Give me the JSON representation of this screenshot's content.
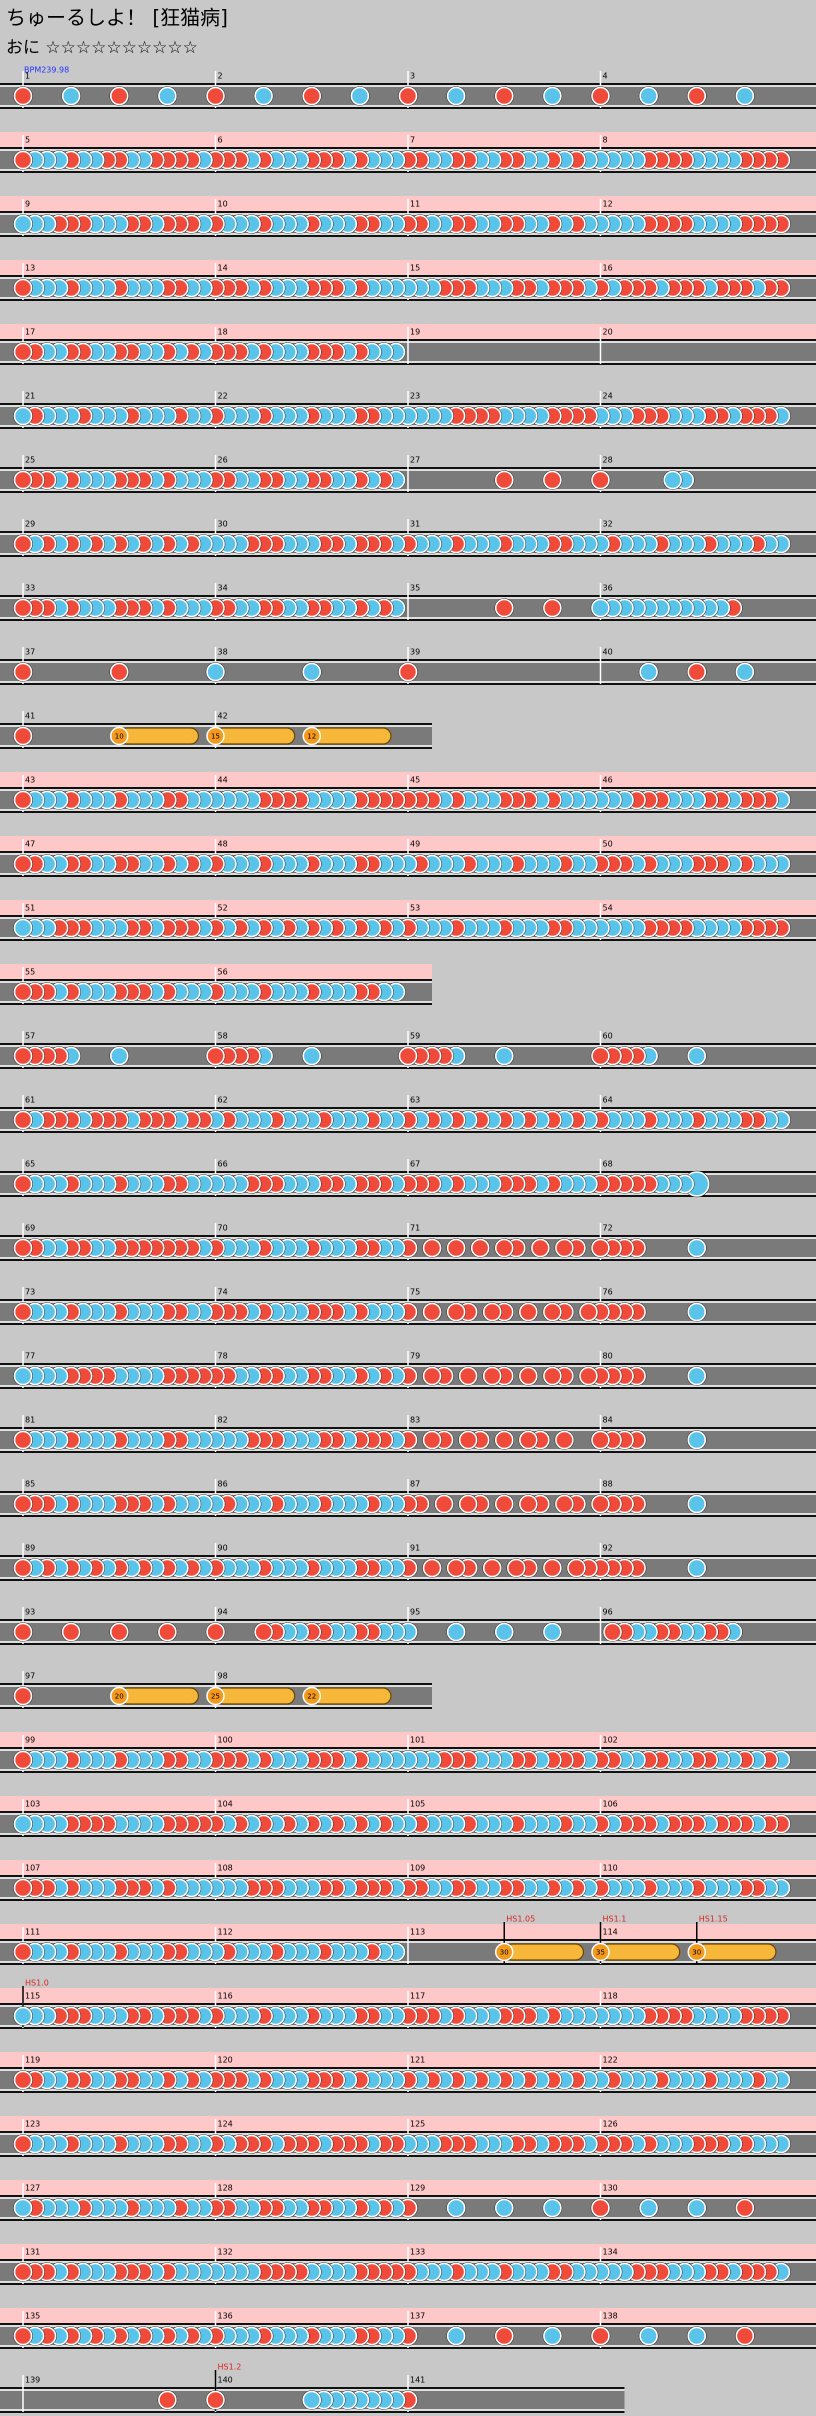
{
  "header": {
    "title": "ちゅーるしよ！ [狂猫病]",
    "difficulty": "おに ☆☆☆☆☆☆☆☆☆☆",
    "bpm": "BPM239.98"
  },
  "rows": [
    {
      "gogo": false,
      "measures": [
        {
          "number": "1",
          "notes": "1212"
        },
        {
          "number": "2",
          "notes": "1212"
        },
        {
          "number": "3",
          "notes": "1212"
        },
        {
          "number": "4",
          "notes": "1212"
        }
      ]
    },
    {
      "gogo": true,
      "measures": [
        {
          "number": "5",
          "notes": "1222122112211112"
        },
        {
          "number": "6",
          "notes": "1112122211121222"
        },
        {
          "number": "7",
          "notes": "1122112211221212"
        },
        {
          "number": "8",
          "notes": "2222111122221111"
        }
      ]
    },
    {
      "gogo": true,
      "measures": [
        {
          "number": "9",
          "notes": "2221112221121112"
        },
        {
          "number": "10",
          "notes": "1222122212221122"
        },
        {
          "number": "11",
          "notes": "1122112211221212"
        },
        {
          "number": "12",
          "notes": "2222111122221111"
        }
      ]
    },
    {
      "gogo": true,
      "measures": [
        {
          "number": "13",
          "notes": "1222122212221122"
        },
        {
          "number": "14",
          "notes": "1112122211121222"
        },
        {
          "number": "15",
          "notes": "2221112221121112"
        },
        {
          "number": "16",
          "notes": "1211121112111211"
        }
      ]
    },
    {
      "gogo": true,
      "measures": [
        {
          "number": "17",
          "notes": "1122112211221212"
        },
        {
          "number": "18",
          "notes": "1112122211121222"
        },
        {
          "number": "19",
          "notes": "0"
        },
        {
          "number": "20",
          "notes": "0"
        }
      ]
    },
    {
      "gogo": false,
      "measures": [
        {
          "number": "21",
          "notes": "2122212221222122"
        },
        {
          "number": "22",
          "notes": "1222122212221122"
        },
        {
          "number": "23",
          "notes": "2222111122221111"
        },
        {
          "number": "24",
          "notes": "2221112221121112"
        }
      ]
    },
    {
      "gogo": false,
      "measures": [
        {
          "number": "25",
          "notes": "1112122211121222"
        },
        {
          "number": "26",
          "notes": "1122112211221212"
        },
        {
          "number": "27",
          "notes": "0011"
        },
        {
          "number": "28",
          "notes": "1000002200000000"
        }
      ]
    },
    {
      "gogo": false,
      "measures": [
        {
          "number": "29",
          "notes": "1212121212121212"
        },
        {
          "number": "30",
          "notes": "2221112221121112"
        },
        {
          "number": "31",
          "notes": "1222122212221122"
        },
        {
          "number": "32",
          "notes": "2122212221222122"
        }
      ]
    },
    {
      "gogo": false,
      "measures": [
        {
          "number": "33",
          "notes": "1112122211121222"
        },
        {
          "number": "34",
          "notes": "1122112211221212"
        },
        {
          "number": "35",
          "notes": "0011"
        },
        {
          "number": "36",
          "notes": "2222222222210000"
        }
      ]
    },
    {
      "gogo": false,
      "measures": [
        {
          "number": "37",
          "notes": "1010"
        },
        {
          "number": "38",
          "notes": "2020"
        },
        {
          "number": "39",
          "notes": "1000"
        },
        {
          "number": "40",
          "notes": "0212"
        }
      ]
    },
    {
      "gogo": false,
      "measures": [
        {
          "number": "41",
          "notes": "10007008",
          "balloons": [
            "10"
          ]
        },
        {
          "number": "42",
          "notes": "70087008",
          "balloons": [
            "12",
            "15"
          ]
        }
      ]
    },
    {
      "gogo": true,
      "measures": [
        {
          "number": "43",
          "notes": "1222122212221122"
        },
        {
          "number": "44",
          "notes": "2222111122221111"
        },
        {
          "number": "45",
          "notes": "1112122211121222"
        },
        {
          "number": "46",
          "notes": "2221112221121112"
        }
      ]
    },
    {
      "gogo": true,
      "measures": [
        {
          "number": "47",
          "notes": "1122112211221212"
        },
        {
          "number": "48",
          "notes": "1222122212221122"
        },
        {
          "number": "49",
          "notes": "2122212221222122"
        },
        {
          "number": "50",
          "notes": "1112122211121222"
        }
      ]
    },
    {
      "gogo": true,
      "measures": [
        {
          "number": "51",
          "notes": "2221112221121112"
        },
        {
          "number": "52",
          "notes": "1212121212121212"
        },
        {
          "number": "53",
          "notes": "1222122212221122"
        },
        {
          "number": "54",
          "notes": "2222111122221111"
        }
      ]
    },
    {
      "gogo": true,
      "measures": [
        {
          "number": "55",
          "notes": "1112122211121222"
        },
        {
          "number": "56",
          "notes": "1222122212221122"
        }
      ]
    },
    {
      "gogo": false,
      "measures": [
        {
          "number": "57",
          "notes": "1111200020000000"
        },
        {
          "number": "58",
          "notes": "1111200020000000"
        },
        {
          "number": "59",
          "notes": "1111200020000000"
        },
        {
          "number": "60",
          "notes": "1111200020000000"
        }
      ]
    },
    {
      "gogo": false,
      "measures": [
        {
          "number": "61",
          "notes": "1211121112111211"
        },
        {
          "number": "62",
          "notes": "2122212221222122"
        },
        {
          "number": "63",
          "notes": "1212121212121212"
        },
        {
          "number": "64",
          "notes": "1222122212221122"
        }
      ]
    },
    {
      "gogo": false,
      "measures": [
        {
          "number": "65",
          "notes": "1222122212221122"
        },
        {
          "number": "66",
          "notes": "2221112221121112"
        },
        {
          "number": "67",
          "notes": "1112122211121222"
        },
        {
          "number": "68",
          "notes": "1111122240000000"
        }
      ]
    },
    {
      "gogo": false,
      "measures": [
        {
          "number": "69",
          "notes": "1122112211111112"
        },
        {
          "number": "70",
          "notes": "1222122212221122"
        },
        {
          "number": "71",
          "notes": "1010101011010110"
        },
        {
          "number": "72",
          "notes": "1111000020000000"
        }
      ]
    },
    {
      "gogo": false,
      "measures": [
        {
          "number": "73",
          "notes": "1222122212221122"
        },
        {
          "number": "74",
          "notes": "1112122211121222"
        },
        {
          "number": "75",
          "notes": "1010110110101101"
        },
        {
          "number": "76",
          "notes": "1111000020000000"
        }
      ]
    },
    {
      "gogo": false,
      "measures": [
        {
          "number": "77",
          "notes": "2222111122221111"
        },
        {
          "number": "78",
          "notes": "1122112211221212"
        },
        {
          "number": "79",
          "notes": "1011010110101101"
        },
        {
          "number": "80",
          "notes": "1111000020000000"
        }
      ]
    },
    {
      "gogo": false,
      "measures": [
        {
          "number": "81",
          "notes": "1222122212221122"
        },
        {
          "number": "82",
          "notes": "2221112221121112"
        },
        {
          "number": "83",
          "notes": "1011011010110100"
        },
        {
          "number": "84",
          "notes": "1111000020000000"
        }
      ]
    },
    {
      "gogo": false,
      "measures": [
        {
          "number": "85",
          "notes": "1112122211121222"
        },
        {
          "number": "86",
          "notes": "2122212221222122"
        },
        {
          "number": "87",
          "notes": "1101011010110110"
        },
        {
          "number": "88",
          "notes": "1111000020000000"
        }
      ]
    },
    {
      "gogo": false,
      "measures": [
        {
          "number": "89",
          "notes": "1212121212121212"
        },
        {
          "number": "90",
          "notes": "1222122212221122"
        },
        {
          "number": "91",
          "notes": "1010110101101011"
        },
        {
          "number": "92",
          "notes": "1111000020000000"
        }
      ]
    },
    {
      "gogo": false,
      "measures": [
        {
          "number": "93",
          "notes": "1111"
        },
        {
          "number": "94",
          "notes": "1000112211221122"
        },
        {
          "number": "95",
          "notes": "2222"
        },
        {
          "number": "96",
          "notes": "0112211221120000"
        }
      ]
    },
    {
      "gogo": false,
      "measures": [
        {
          "number": "97",
          "notes": "10007008",
          "balloons": [
            "20"
          ]
        },
        {
          "number": "98",
          "notes": "70087008",
          "balloons": [
            "22",
            "25"
          ]
        }
      ]
    },
    {
      "gogo": true,
      "measures": [
        {
          "number": "99",
          "notes": "1222122212221122"
        },
        {
          "number": "100",
          "notes": "1112122211121222"
        },
        {
          "number": "101",
          "notes": "2221112221121112"
        },
        {
          "number": "102",
          "notes": "1122112211221212"
        }
      ]
    },
    {
      "gogo": true,
      "measures": [
        {
          "number": "103",
          "notes": "2222111122221111"
        },
        {
          "number": "104",
          "notes": "1212121212121212"
        },
        {
          "number": "105",
          "notes": "2122212221222122"
        },
        {
          "number": "106",
          "notes": "1211121112111211"
        }
      ]
    },
    {
      "gogo": true,
      "measures": [
        {
          "number": "107",
          "notes": "1112122211121222"
        },
        {
          "number": "108",
          "notes": "2221112221121112"
        },
        {
          "number": "109",
          "notes": "1122112211221212"
        },
        {
          "number": "110",
          "notes": "1222122212221122"
        }
      ]
    },
    {
      "gogo": true,
      "measures": [
        {
          "number": "111",
          "notes": "1222122212221122"
        },
        {
          "number": "112",
          "notes": "2122212221222122"
        },
        {
          "number": "113",
          "notes": "00007008",
          "balloons": [
            "30"
          ],
          "scroll": [
            "HS1.05"
          ]
        },
        {
          "number": "114",
          "notes": "70087008",
          "balloons": [
            "30",
            "35"
          ],
          "scroll": [
            "HS1.1",
            "HS1.15"
          ]
        }
      ]
    },
    {
      "gogo": true,
      "measures": [
        {
          "number": "115",
          "notes": "2221112221121112",
          "scroll": [
            "HS1.0"
          ]
        },
        {
          "number": "116",
          "notes": "1222122212221122"
        },
        {
          "number": "117",
          "notes": "1112122211121222"
        },
        {
          "number": "118",
          "notes": "2222111122221111"
        }
      ]
    },
    {
      "gogo": true,
      "measures": [
        {
          "number": "119",
          "notes": "1122112211221212"
        },
        {
          "number": "120",
          "notes": "1112122211121222"
        },
        {
          "number": "121",
          "notes": "1212121212121212"
        },
        {
          "number": "122",
          "notes": "2122212221222122"
        }
      ]
    },
    {
      "gogo": true,
      "measures": [
        {
          "number": "123",
          "notes": "1222122212221122"
        },
        {
          "number": "124",
          "notes": "1211121112111211"
        },
        {
          "number": "125",
          "notes": "2221112221121112"
        },
        {
          "number": "126",
          "notes": "1112122211121222"
        }
      ]
    },
    {
      "gogo": true,
      "measures": [
        {
          "number": "127",
          "notes": "2122212221222122"
        },
        {
          "number": "128",
          "notes": "1122112211221212"
        },
        {
          "number": "129",
          "notes": "1222"
        },
        {
          "number": "130",
          "notes": "1221"
        }
      ]
    },
    {
      "gogo": true,
      "measures": [
        {
          "number": "131",
          "notes": "1112122211121222"
        },
        {
          "number": "132",
          "notes": "2222111122221111"
        },
        {
          "number": "133",
          "notes": "1222122212221122"
        },
        {
          "number": "134",
          "notes": "2221112221121112"
        }
      ]
    },
    {
      "gogo": true,
      "measures": [
        {
          "number": "135",
          "notes": "1212121212121212"
        },
        {
          "number": "136",
          "notes": "1222122212221122"
        },
        {
          "number": "137",
          "notes": "1212"
        },
        {
          "number": "138",
          "notes": "1221"
        }
      ]
    },
    {
      "gogo": false,
      "measures": [
        {
          "number": "139",
          "notes": "0001"
        },
        {
          "number": "140",
          "notes": "1000000022222222",
          "scroll": [
            "HS1.2"
          ]
        },
        {
          "number": "141",
          "notes": "1"
        }
      ]
    }
  ]
}
